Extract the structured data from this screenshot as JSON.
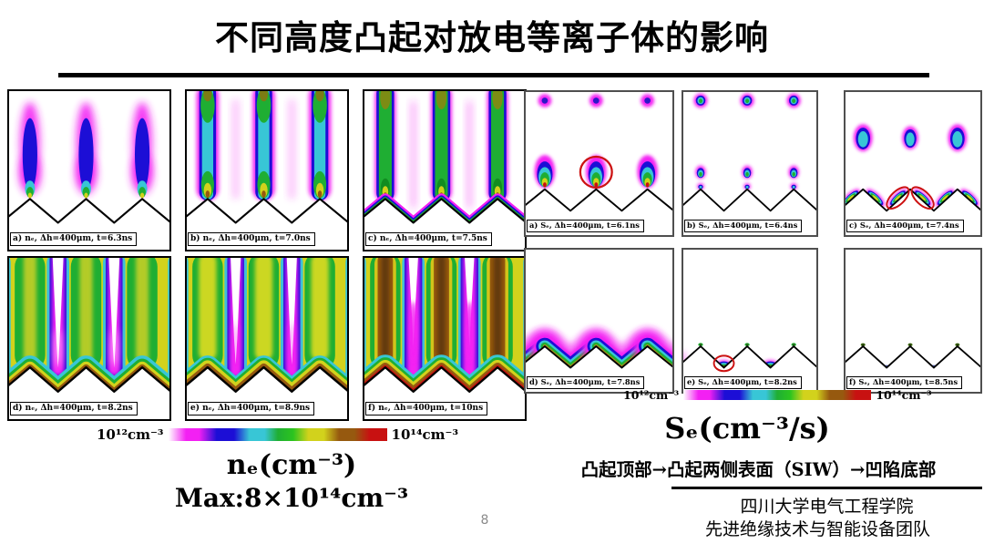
{
  "title": "不同高度凸起对放电等离子体的影响",
  "page_number": "8",
  "colors": {
    "scale": [
      "#ffffff",
      "#f320f3",
      "#1c0ed6",
      "#38c6d6",
      "#1fae33",
      "#2cc41f",
      "#d2d21c",
      "#96590f",
      "#c81111"
    ],
    "annotation_red": "#cc1111"
  },
  "ne_group": {
    "caption_quantity": "nₑ(cm⁻³)",
    "caption_max": "Max:8×10¹⁴cm⁻³",
    "colorbar": {
      "min_label": "10¹²cm⁻³",
      "max_label": "10¹⁴cm⁻³"
    },
    "panels": [
      {
        "label": "a) nₑ, Δh=400μm, t=6.3ns",
        "visual": "ne_a"
      },
      {
        "label": "b) nₑ, Δh=400μm, t=7.0ns",
        "visual": "ne_b"
      },
      {
        "label": "c) nₑ, Δh=400μm, t=7.5ns",
        "visual": "ne_c"
      },
      {
        "label": "d) nₑ, Δh=400μm, t=8.2ns",
        "visual": "ne_d"
      },
      {
        "label": "e) nₑ, Δh=400μm, t=8.9ns",
        "visual": "ne_e"
      },
      {
        "label": "f) nₑ, Δh=400μm, t=10ns",
        "visual": "ne_f"
      }
    ]
  },
  "se_group": {
    "caption_quantity": "Sₑ(cm⁻³/s)",
    "mechanism_note": "凸起顶部→凸起两侧表面（SIW）→凹陷底部",
    "colorbar": {
      "min_label": "10¹²cm⁻³",
      "max_label": "10¹⁴cm⁻³"
    },
    "panels": [
      {
        "label": "a) Sₑ, Δh=400μm, t=6.1ns",
        "visual": "se_a"
      },
      {
        "label": "b) Sₑ, Δh=400μm, t=6.4ns",
        "visual": "se_b"
      },
      {
        "label": "c) Sₑ, Δh=400μm, t=7.4ns",
        "visual": "se_c"
      },
      {
        "label": "d) Sₑ, Δh=400μm, t=7.8ns",
        "visual": "se_d"
      },
      {
        "label": "e) Sₑ, Δh=400μm, t=8.2ns",
        "visual": "se_e"
      },
      {
        "label": "f) Sₑ, Δh=400μm, t=8.5ns",
        "visual": "se_f"
      }
    ]
  },
  "footer": {
    "institution_line1": "四川大学电气工程学院",
    "institution_line2": "先进绝缘技术与智能设备团队"
  }
}
